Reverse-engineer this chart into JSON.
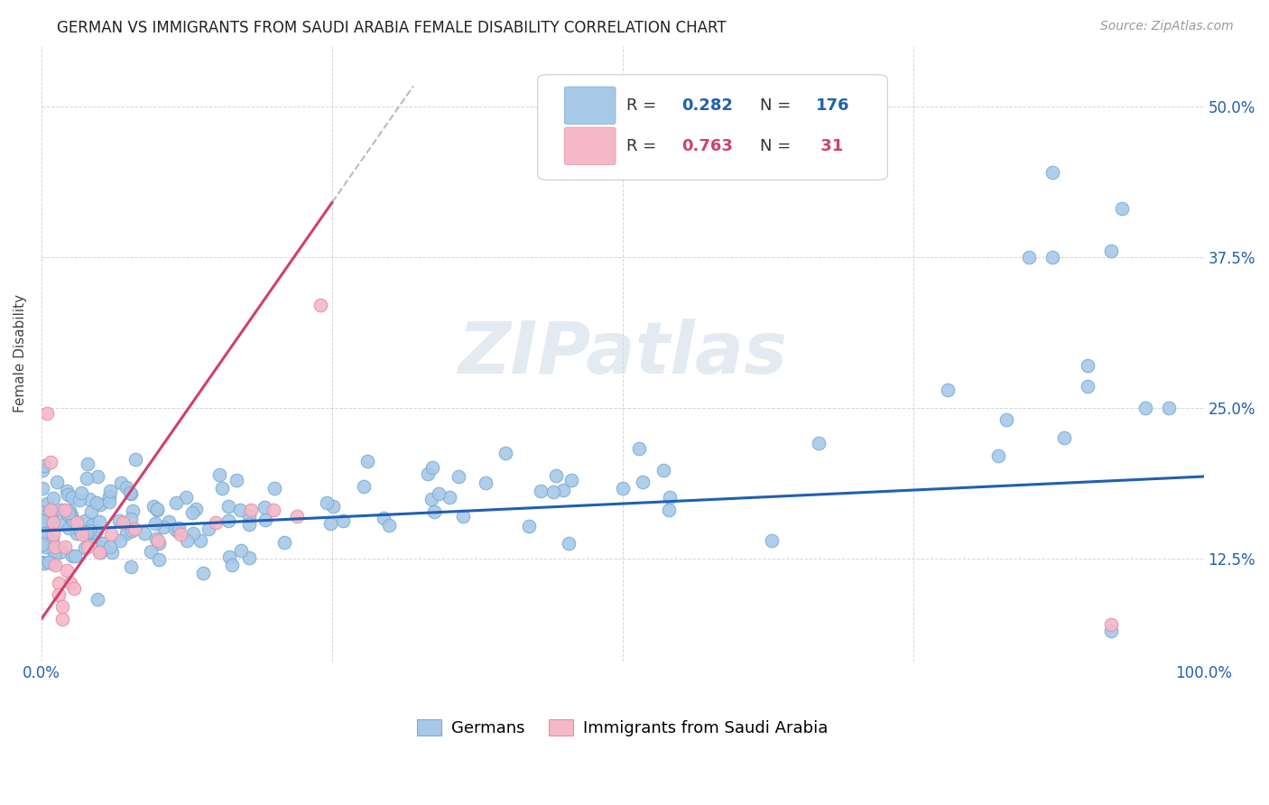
{
  "title": "GERMAN VS IMMIGRANTS FROM SAUDI ARABIA FEMALE DISABILITY CORRELATION CHART",
  "source": "Source: ZipAtlas.com",
  "ylabel": "Female Disability",
  "watermark": "ZIPatlas",
  "xlim": [
    0.0,
    1.0
  ],
  "ylim": [
    0.04,
    0.55
  ],
  "xtick_positions": [
    0.0,
    0.25,
    0.5,
    0.75,
    1.0
  ],
  "xticklabels": [
    "0.0%",
    "",
    "",
    "",
    "100.0%"
  ],
  "ytick_positions": [
    0.125,
    0.25,
    0.375,
    0.5
  ],
  "yticklabels": [
    "12.5%",
    "25.0%",
    "37.5%",
    "50.0%"
  ],
  "blue_color": "#a8c8e8",
  "blue_edge_color": "#7aafd4",
  "pink_color": "#f4b8c8",
  "pink_edge_color": "#e890a8",
  "blue_line_color": "#2060b0",
  "pink_line_color": "#d04070",
  "gray_dash_color": "#bbbbbb",
  "legend_R_blue": "0.282",
  "legend_N_blue": "176",
  "legend_R_pink": "0.763",
  "legend_N_pink": " 31",
  "legend_label_blue": "Germans",
  "legend_label_pink": "Immigrants from Saudi Arabia",
  "text_color_blue": "#2060b0",
  "text_color_pink": "#d04070",
  "background_color": "#ffffff",
  "grid_color": "#cccccc",
  "title_fontsize": 12,
  "tick_fontsize": 12,
  "legend_fontsize": 13,
  "ylabel_fontsize": 11
}
